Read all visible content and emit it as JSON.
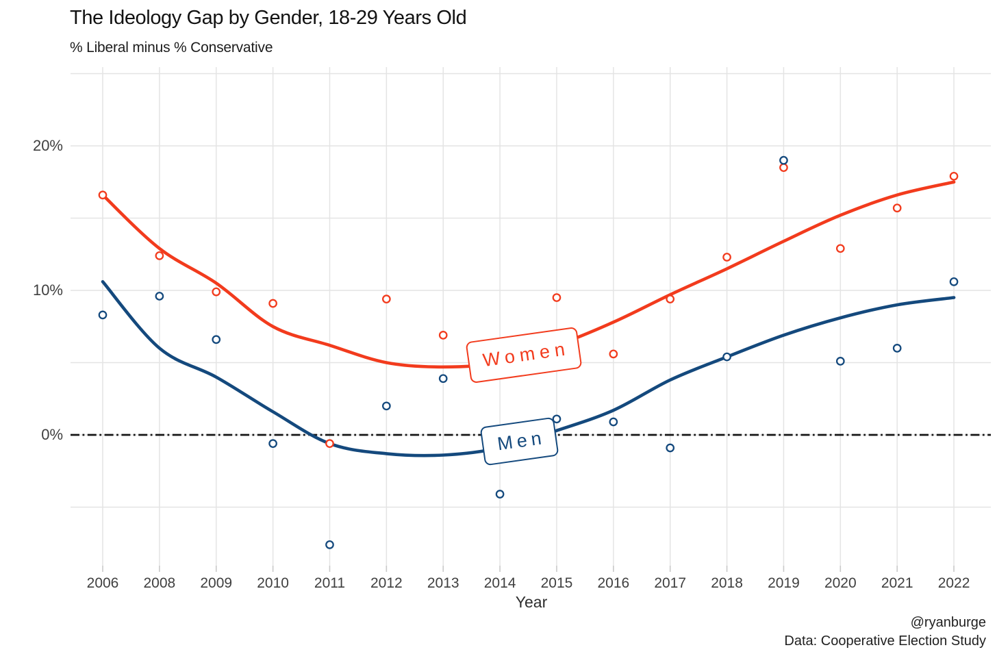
{
  "caption": {
    "line1": "@ryanburge",
    "line2": "Data: Cooperative Election Study"
  },
  "colors": {
    "women": "#f23b1d",
    "men": "#14497d",
    "grid": "#e4e4e4",
    "tick": "#c9c9c9",
    "zero_line": "#151515",
    "axis_text": "#3f3f3f",
    "background": "#ffffff"
  },
  "chart_data": {
    "type": "scatter",
    "title": "The Ideology Gap by Gender, 18-29 Years Old",
    "subtitle": "% Liberal minus % Conservative",
    "xlabel": "Year",
    "x_categories": [
      "2006",
      "2008",
      "2009",
      "2010",
      "2011",
      "2012",
      "2013",
      "2014",
      "2015",
      "2016",
      "2017",
      "2018",
      "2019",
      "2020",
      "2021",
      "2022"
    ],
    "y_ticks": [
      {
        "value": 0,
        "label": "0%"
      },
      {
        "value": 10,
        "label": "10%"
      },
      {
        "value": 20,
        "label": "20%"
      }
    ],
    "y_gridlines": [
      -5,
      0,
      5,
      10,
      15,
      20,
      25
    ],
    "ylim": [
      -9,
      25.4
    ],
    "zero_reference_line": 0,
    "grid": true,
    "legend": "inline curve labels (Women / Men) in rotated boxes",
    "series": [
      {
        "name": "Women",
        "color": "#f23b1d",
        "marker": "open-circle",
        "values": [
          16.6,
          12.4,
          9.9,
          9.1,
          -0.6,
          9.4,
          6.9,
          4.7,
          9.5,
          5.6,
          9.4,
          12.3,
          18.5,
          12.9,
          15.7,
          17.9
        ],
        "trend": [
          16.6,
          12.9,
          10.5,
          7.5,
          6.2,
          5.0,
          4.7,
          5.0,
          6.2,
          7.8,
          9.7,
          11.5,
          13.4,
          15.2,
          16.6,
          17.5
        ]
      },
      {
        "name": "Men",
        "color": "#14497d",
        "marker": "open-circle",
        "values": [
          8.3,
          9.6,
          6.6,
          -0.6,
          -7.6,
          2.0,
          3.9,
          -4.1,
          1.1,
          0.9,
          -0.9,
          5.4,
          19.0,
          5.1,
          6.0,
          10.6
        ],
        "trend": [
          10.6,
          6.0,
          4.0,
          1.6,
          -0.6,
          -1.3,
          -1.4,
          -0.9,
          0.3,
          1.7,
          3.8,
          5.4,
          6.9,
          8.1,
          9.0,
          9.5
        ]
      }
    ]
  }
}
